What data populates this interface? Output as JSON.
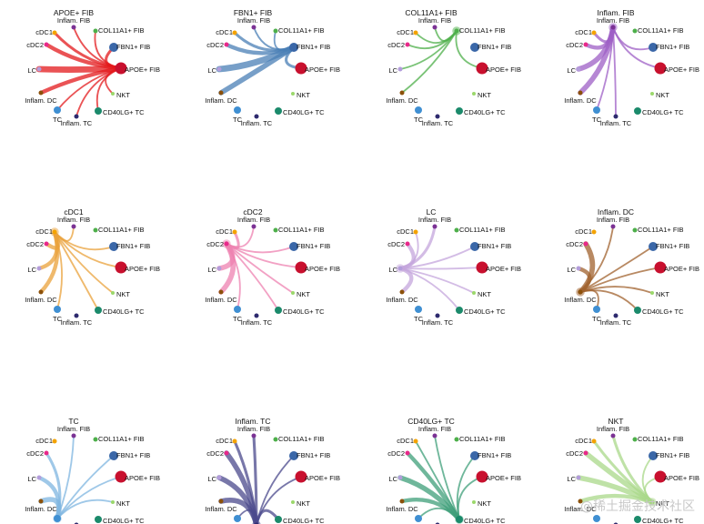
{
  "figure": {
    "nodes": [
      {
        "key": "apoe_fib",
        "label": "APOE+ FIB",
        "color": "#c8102e"
      },
      {
        "key": "fbn1_fib",
        "label": "FBN1+ FIB",
        "color": "#3a67a8"
      },
      {
        "key": "col11a1_fib",
        "label": "COL11A1+ FIB",
        "color": "#4daf4a"
      },
      {
        "key": "inflam_fib",
        "label": "Inflam. FIB",
        "color": "#7b3294"
      },
      {
        "key": "cdc1",
        "label": "cDC1",
        "color": "#f4a300"
      },
      {
        "key": "cdc2",
        "label": "cDC2",
        "color": "#e7298a"
      },
      {
        "key": "lc",
        "label": "LC",
        "color": "#b39ddb"
      },
      {
        "key": "inflam_dc",
        "label": "Inflam. DC",
        "color": "#8c510a"
      },
      {
        "key": "tc",
        "label": "TC",
        "color": "#3f8fd2"
      },
      {
        "key": "inflam_tc",
        "label": "Inflam. TC",
        "color": "#2d2a6e"
      },
      {
        "key": "cd40lg_tc",
        "label": "CD40LG+ TC",
        "color": "#1b8a6b"
      },
      {
        "key": "nkt",
        "label": "NKT",
        "color": "#9bd86b"
      }
    ],
    "panels": [
      {
        "title": "APOE+ FIB",
        "source": "apoe_fib",
        "edge_color": "#e31a1c",
        "targets": [
          {
            "node": "lc",
            "weight": 5
          },
          {
            "node": "cdc2",
            "weight": 3
          },
          {
            "node": "inflam_dc",
            "weight": 3
          },
          {
            "node": "cdc1",
            "weight": 2
          },
          {
            "node": "fbn1_fib",
            "weight": 2
          },
          {
            "node": "inflam_fib",
            "weight": 1
          },
          {
            "node": "col11a1_fib",
            "weight": 1
          },
          {
            "node": "tc",
            "weight": 1
          },
          {
            "node": "inflam_tc",
            "weight": 1
          },
          {
            "node": "cd40lg_tc",
            "weight": 1
          },
          {
            "node": "nkt",
            "weight": 1
          }
        ]
      },
      {
        "title": "FBN1+ FIB",
        "source": "fbn1_fib",
        "edge_color": "#4a7fb5",
        "targets": [
          {
            "node": "lc",
            "weight": 5
          },
          {
            "node": "inflam_dc",
            "weight": 4
          },
          {
            "node": "cdc2",
            "weight": 3
          },
          {
            "node": "cdc1",
            "weight": 2
          },
          {
            "node": "apoe_fib",
            "weight": 2
          },
          {
            "node": "inflam_fib",
            "weight": 1
          },
          {
            "node": "col11a1_fib",
            "weight": 1
          }
        ]
      },
      {
        "title": "COL11A1+ FIB",
        "source": "col11a1_fib",
        "edge_color": "#4daf4a",
        "targets": [
          {
            "node": "cdc2",
            "weight": 1
          },
          {
            "node": "lc",
            "weight": 1
          },
          {
            "node": "inflam_dc",
            "weight": 1
          },
          {
            "node": "cdc1",
            "weight": 1
          },
          {
            "node": "inflam_fib",
            "weight": 1
          },
          {
            "node": "apoe_fib",
            "weight": 1
          }
        ]
      },
      {
        "title": "Inflam. FIB",
        "source": "inflam_fib",
        "edge_color": "#9e5fc6",
        "targets": [
          {
            "node": "inflam_dc",
            "weight": 4
          },
          {
            "node": "lc",
            "weight": 4
          },
          {
            "node": "cdc2",
            "weight": 3
          },
          {
            "node": "cdc1",
            "weight": 2
          },
          {
            "node": "fbn1_fib",
            "weight": 1
          },
          {
            "node": "apoe_fib",
            "weight": 1
          },
          {
            "node": "tc",
            "weight": 1
          },
          {
            "node": "inflam_tc",
            "weight": 1
          }
        ]
      },
      {
        "title": "cDC1",
        "source": "cdc1",
        "edge_color": "#e9a23b",
        "targets": [
          {
            "node": "cdc2",
            "weight": 3
          },
          {
            "node": "lc",
            "weight": 3
          },
          {
            "node": "inflam_dc",
            "weight": 3
          },
          {
            "node": "inflam_fib",
            "weight": 1
          },
          {
            "node": "fbn1_fib",
            "weight": 1
          },
          {
            "node": "apoe_fib",
            "weight": 1
          },
          {
            "node": "nkt",
            "weight": 1
          },
          {
            "node": "cd40lg_tc",
            "weight": 1
          },
          {
            "node": "tc",
            "weight": 1
          }
        ]
      },
      {
        "title": "cDC2",
        "source": "cdc2",
        "edge_color": "#ee82b0",
        "targets": [
          {
            "node": "inflam_dc",
            "weight": 4
          },
          {
            "node": "lc",
            "weight": 4
          },
          {
            "node": "cdc1",
            "weight": 2
          },
          {
            "node": "inflam_fib",
            "weight": 1
          },
          {
            "node": "fbn1_fib",
            "weight": 1
          },
          {
            "node": "apoe_fib",
            "weight": 1
          },
          {
            "node": "nkt",
            "weight": 1
          },
          {
            "node": "cd40lg_tc",
            "weight": 1
          },
          {
            "node": "tc",
            "weight": 1
          }
        ]
      },
      {
        "title": "LC",
        "source": "lc",
        "edge_color": "#c4a6dc",
        "targets": [
          {
            "node": "cdc2",
            "weight": 3
          },
          {
            "node": "inflam_dc",
            "weight": 3
          },
          {
            "node": "inflam_fib",
            "weight": 2
          },
          {
            "node": "cdc1",
            "weight": 1
          },
          {
            "node": "fbn1_fib",
            "weight": 1
          },
          {
            "node": "apoe_fib",
            "weight": 1
          },
          {
            "node": "nkt",
            "weight": 1
          },
          {
            "node": "cd40lg_tc",
            "weight": 1
          }
        ]
      },
      {
        "title": "Inflam. DC",
        "source": "inflam_dc",
        "edge_color": "#a0622d",
        "targets": [
          {
            "node": "cdc2",
            "weight": 4
          },
          {
            "node": "lc",
            "weight": 3
          },
          {
            "node": "inflam_fib",
            "weight": 1
          },
          {
            "node": "fbn1_fib",
            "weight": 1
          },
          {
            "node": "apoe_fib",
            "weight": 1
          },
          {
            "node": "nkt",
            "weight": 1
          },
          {
            "node": "cd40lg_tc",
            "weight": 1
          },
          {
            "node": "tc",
            "weight": 1
          }
        ]
      },
      {
        "title": "TC",
        "source": "tc",
        "edge_color": "#7fb6e0",
        "targets": [
          {
            "node": "inflam_dc",
            "weight": 4
          },
          {
            "node": "lc",
            "weight": 3
          },
          {
            "node": "cdc2",
            "weight": 2
          },
          {
            "node": "inflam_fib",
            "weight": 1
          },
          {
            "node": "fbn1_fib",
            "weight": 1
          },
          {
            "node": "apoe_fib",
            "weight": 1
          },
          {
            "node": "nkt",
            "weight": 1
          }
        ]
      },
      {
        "title": "Inflam. TC",
        "source": "inflam_tc",
        "edge_color": "#4b4a8c",
        "targets": [
          {
            "node": "lc",
            "weight": 4
          },
          {
            "node": "cdc2",
            "weight": 4
          },
          {
            "node": "inflam_dc",
            "weight": 4
          },
          {
            "node": "inflam_fib",
            "weight": 2
          },
          {
            "node": "cdc1",
            "weight": 2
          },
          {
            "node": "fbn1_fib",
            "weight": 1
          },
          {
            "node": "apoe_fib",
            "weight": 1
          },
          {
            "node": "cd40lg_tc",
            "weight": 2
          },
          {
            "node": "tc",
            "weight": 1
          }
        ]
      },
      {
        "title": "CD40LG+ TC",
        "source": "cd40lg_tc",
        "edge_color": "#3f9f7a",
        "targets": [
          {
            "node": "lc",
            "weight": 4
          },
          {
            "node": "cdc2",
            "weight": 3
          },
          {
            "node": "inflam_dc",
            "weight": 3
          },
          {
            "node": "inflam_fib",
            "weight": 1
          },
          {
            "node": "cdc1",
            "weight": 1
          },
          {
            "node": "fbn1_fib",
            "weight": 1
          },
          {
            "node": "apoe_fib",
            "weight": 1
          },
          {
            "node": "tc",
            "weight": 1
          }
        ]
      },
      {
        "title": "NKT",
        "source": "nkt",
        "edge_color": "#a9d88a",
        "targets": [
          {
            "node": "lc",
            "weight": 4
          },
          {
            "node": "cdc2",
            "weight": 4
          },
          {
            "node": "inflam_dc",
            "weight": 3
          },
          {
            "node": "cdc1",
            "weight": 2
          },
          {
            "node": "inflam_fib",
            "weight": 2
          },
          {
            "node": "fbn1_fib",
            "weight": 1
          },
          {
            "node": "apoe_fib",
            "weight": 1
          }
        ]
      }
    ]
  },
  "watermark": "@稀土掘金技术社区"
}
